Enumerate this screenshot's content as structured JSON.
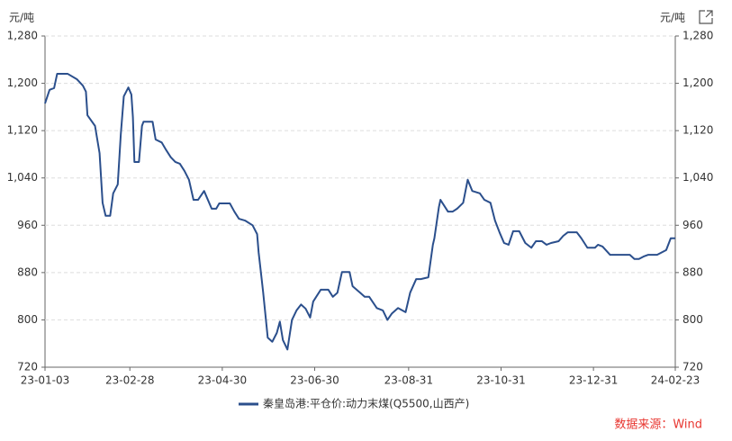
{
  "chart_data": {
    "type": "line",
    "y_label": "元/吨",
    "y2_label": "元/吨",
    "source": "数据来源：Wind",
    "grid": true,
    "x": [
      "23-01-03",
      "23-01-06",
      "23-01-09",
      "23-01-11",
      "23-01-18",
      "23-01-24",
      "23-01-28",
      "23-01-30",
      "23-01-31",
      "23-02-05",
      "23-02-08",
      "23-02-10",
      "23-02-12",
      "23-02-15",
      "23-02-17",
      "23-02-20",
      "23-02-22",
      "23-02-24",
      "23-02-27",
      "23-03-01",
      "23-03-02",
      "23-03-03",
      "23-03-06",
      "23-03-08",
      "23-03-09",
      "23-03-15",
      "23-03-17",
      "23-03-21",
      "23-03-24",
      "23-03-27",
      "23-03-30",
      "23-04-02",
      "23-04-05",
      "23-04-08",
      "23-04-11",
      "23-04-14",
      "23-04-18",
      "23-04-20",
      "23-04-23",
      "23-04-26",
      "23-04-28",
      "23-05-05",
      "23-05-08",
      "23-05-11",
      "23-05-15",
      "23-05-20",
      "23-05-23",
      "23-05-24",
      "23-05-26",
      "23-05-27",
      "23-05-30",
      "23-06-02",
      "23-06-05",
      "23-06-07",
      "23-06-09",
      "23-06-12",
      "23-06-15",
      "23-06-18",
      "23-06-21",
      "23-06-24",
      "23-06-27",
      "23-06-29",
      "23-07-01",
      "23-07-04",
      "23-07-09",
      "23-07-12",
      "23-07-15",
      "23-07-18",
      "23-07-23",
      "23-07-25",
      "23-07-30",
      "23-08-02",
      "23-08-05",
      "23-08-10",
      "23-08-14",
      "23-08-17",
      "23-08-20",
      "23-08-24",
      "23-08-29",
      "23-09-01",
      "23-09-05",
      "23-09-08",
      "23-09-13",
      "23-09-16",
      "23-09-17",
      "23-09-20",
      "23-09-21",
      "23-09-26",
      "23-09-29",
      "23-10-02",
      "23-10-06",
      "23-10-09",
      "23-10-12",
      "23-10-17",
      "23-10-20",
      "23-10-24",
      "23-10-27",
      "23-10-30",
      "23-11-02",
      "23-11-05",
      "23-11-08",
      "23-11-12",
      "23-11-16",
      "23-11-20",
      "23-11-23",
      "23-11-27",
      "23-11-30",
      "23-12-03",
      "23-12-08",
      "23-12-11",
      "23-12-14",
      "23-12-20",
      "23-12-23",
      "23-12-27",
      "24-01-01",
      "24-01-03",
      "24-01-06",
      "24-01-11",
      "24-01-24",
      "24-01-27",
      "24-01-30",
      "24-02-02",
      "24-02-05",
      "24-02-11",
      "24-02-17",
      "24-02-20",
      "24-02-23"
    ],
    "series": [
      {
        "name": "秦皇岛港:平仓价:动力末煤(Q5500,山西产)",
        "color": "#2b4f8c",
        "values": [
          1166,
          1189,
          1192,
          1216,
          1216,
          1207,
          1196,
          1186,
          1146,
          1128,
          1082,
          998,
          976,
          976,
          1014,
          1029,
          1113,
          1178,
          1193,
          1181,
          1143,
          1067,
          1067,
          1128,
          1135,
          1135,
          1105,
          1100,
          1087,
          1075,
          1067,
          1064,
          1052,
          1037,
          1003,
          1003,
          1018,
          1006,
          988,
          988,
          997,
          997,
          983,
          971,
          968,
          960,
          945,
          914,
          869,
          846,
          770,
          763,
          778,
          797,
          766,
          750,
          800,
          816,
          826,
          819,
          804,
          831,
          839,
          851,
          851,
          839,
          846,
          881,
          881,
          857,
          846,
          839,
          839,
          820,
          816,
          800,
          811,
          820,
          813,
          846,
          869,
          869,
          872,
          927,
          938,
          991,
          1003,
          983,
          983,
          988,
          998,
          1037,
          1018,
          1014,
          1003,
          998,
          968,
          948,
          930,
          927,
          950,
          950,
          930,
          922,
          933,
          933,
          927,
          930,
          933,
          942,
          948,
          948,
          938,
          922,
          922,
          927,
          924,
          910,
          910,
          903,
          903,
          907,
          910,
          910,
          918,
          938,
          938
        ]
      }
    ],
    "xlim": [
      "23-01-03",
      "24-02-23"
    ],
    "xticks": [
      "23-01-03",
      "23-02-28",
      "23-04-30",
      "23-06-30",
      "23-08-31",
      "23-10-31",
      "23-12-31",
      "24-02-23"
    ],
    "ylim": [
      720,
      1280
    ],
    "yticks": [
      720,
      800,
      880,
      960,
      {
        "value": 1040,
        "label": "1,040"
      },
      {
        "value": 1120,
        "label": "1,120"
      },
      {
        "value": 1200,
        "label": "1,200"
      },
      {
        "value": 1280,
        "label": "1,280"
      }
    ],
    "y2lim": [
      720,
      1280
    ],
    "y2ticks": [
      720,
      800,
      880,
      960,
      {
        "value": 1040,
        "label": "1,040"
      },
      {
        "value": 1120,
        "label": "1,120"
      },
      {
        "value": 1200,
        "label": "1,200"
      },
      {
        "value": 1280,
        "label": "1,280"
      }
    ]
  }
}
